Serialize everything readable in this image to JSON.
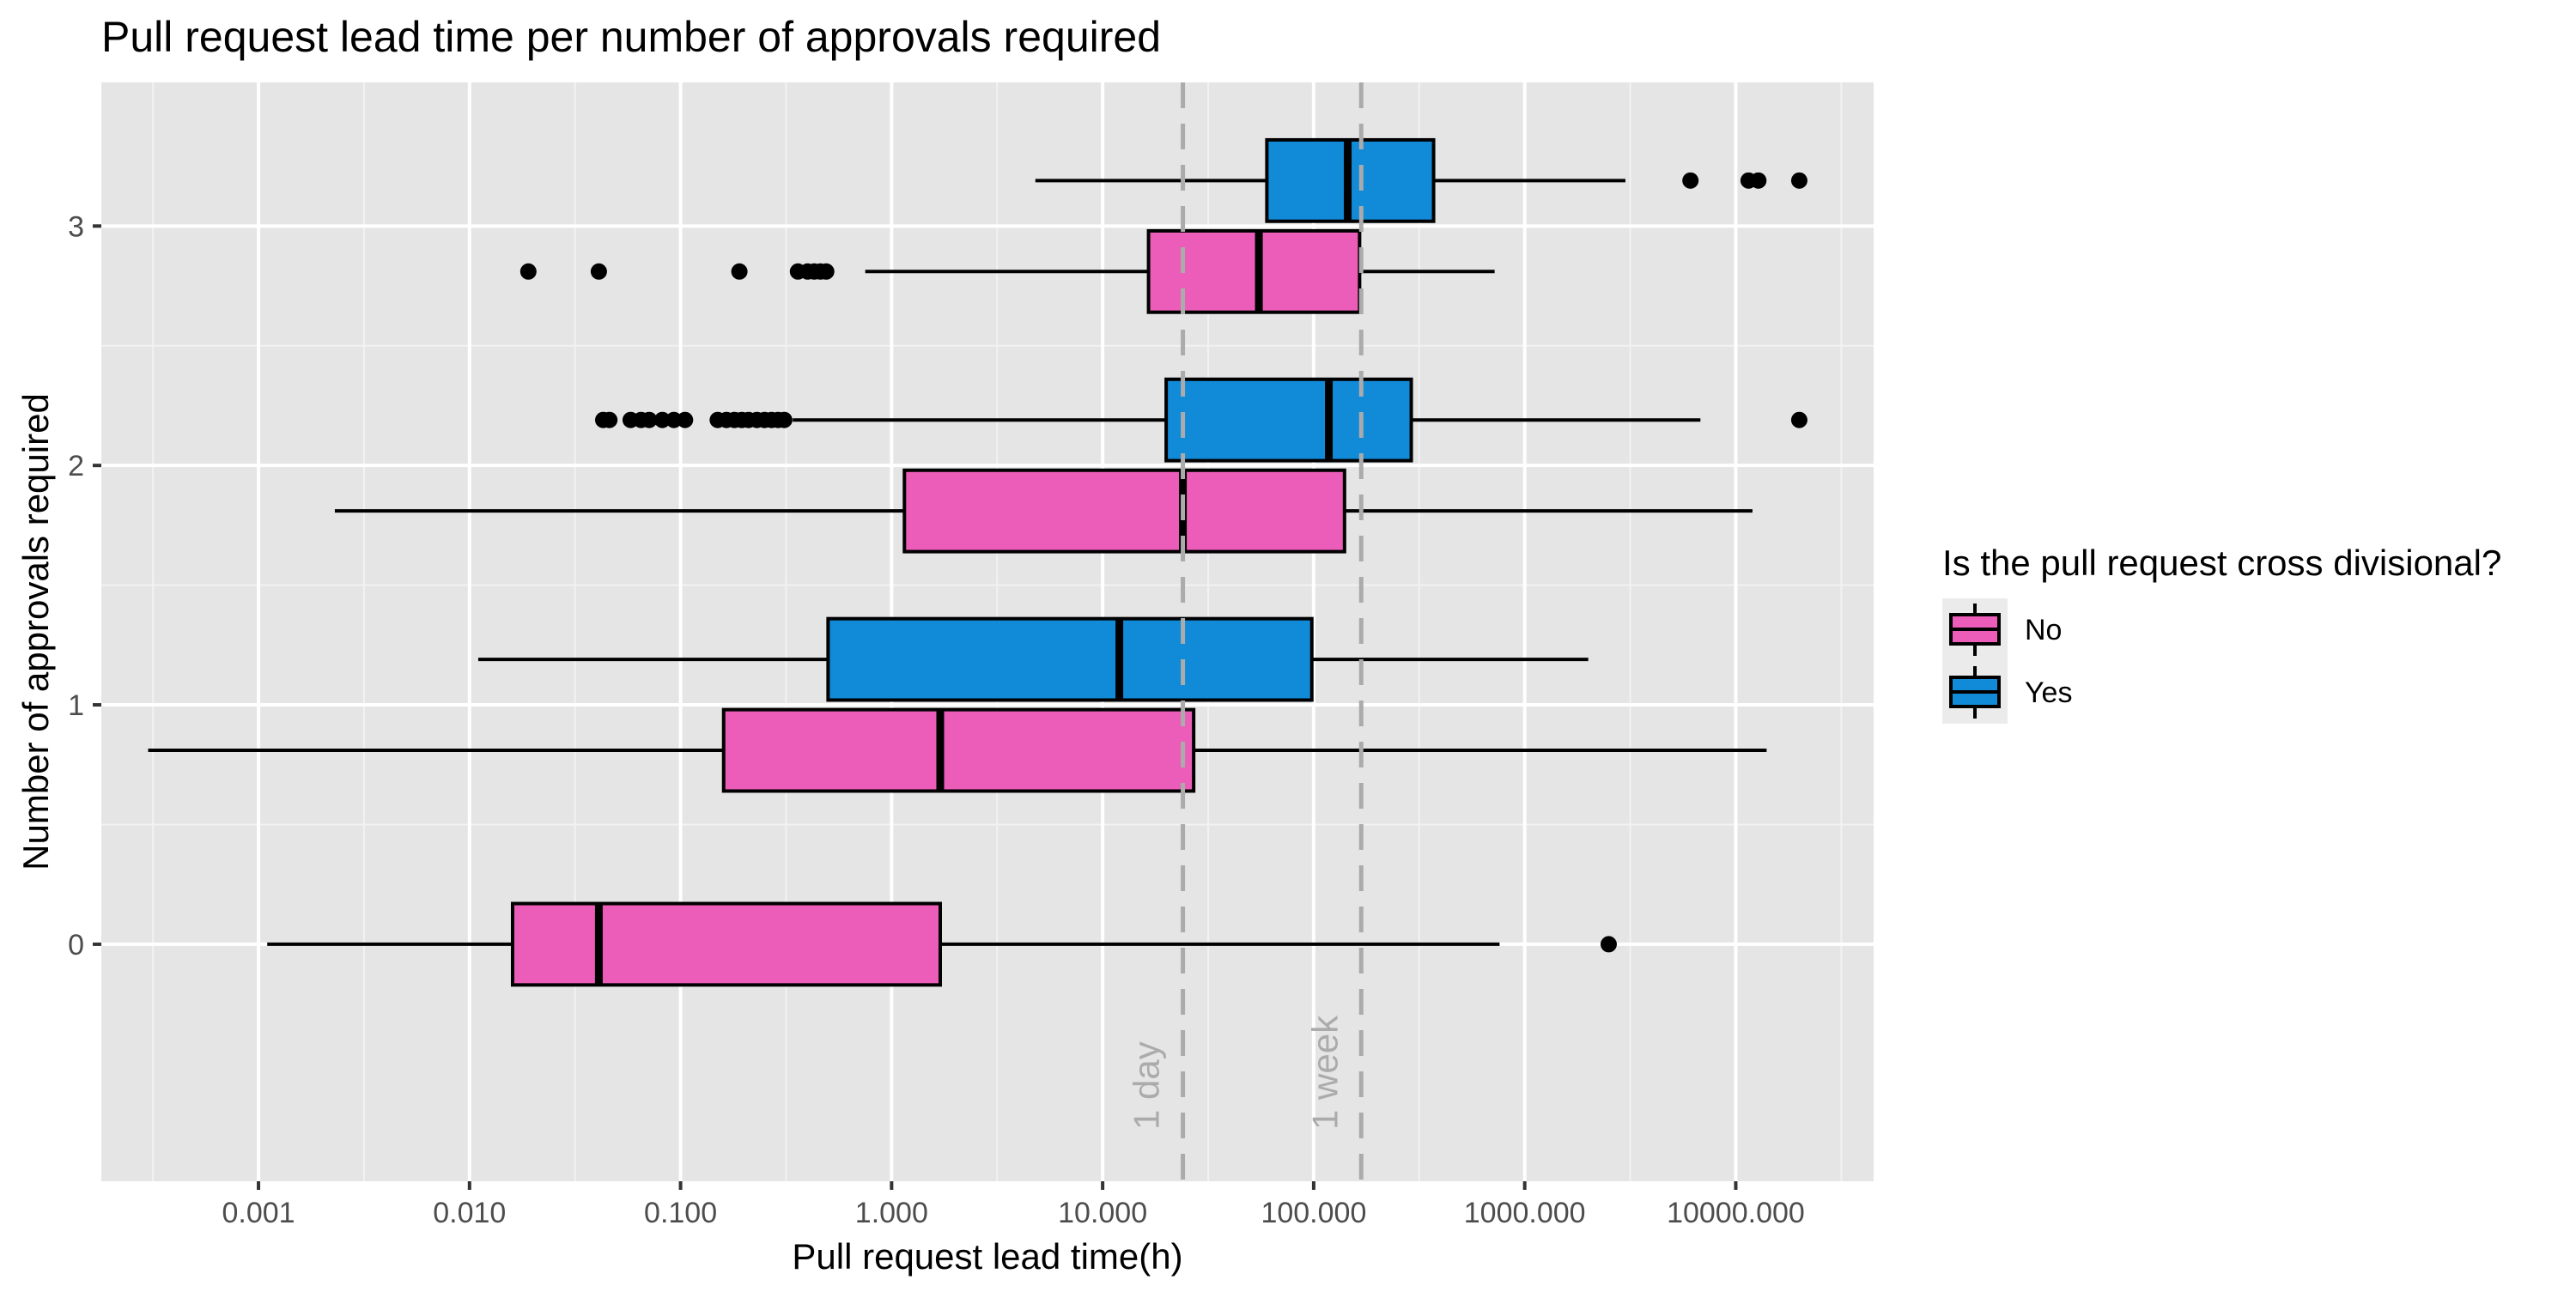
{
  "chart_data": {
    "type": "boxplot",
    "orientation": "horizontal",
    "title": "Pull request lead time per number of approvals required",
    "xlabel": "Pull request lead time(h)",
    "ylabel": "Number of approvals required",
    "x_scale": "log10",
    "xlim": [
      0.00018,
      45000
    ],
    "x_ticks": [
      0.001,
      0.01,
      0.1,
      1,
      10,
      100,
      1000,
      10000
    ],
    "x_tick_labels": [
      "0.001",
      "0.010",
      "0.100",
      "1.000",
      "10.000",
      "100.000",
      "1000.000",
      "10000.000"
    ],
    "ylim": [
      -0.99,
      3.6
    ],
    "y_ticks": [
      0,
      1,
      2,
      3
    ],
    "y_tick_labels": [
      "0",
      "1",
      "2",
      "3"
    ],
    "grid": true,
    "reference_lines": [
      {
        "label": "1 day",
        "x": 24
      },
      {
        "label": "1 week",
        "x": 168
      }
    ],
    "legend": {
      "title": "Is the pull request cross divisional?",
      "position": "right",
      "entries": [
        {
          "label": "No",
          "color": "#EB5DB8"
        },
        {
          "label": "Yes",
          "color": "#118AD8"
        }
      ]
    },
    "series": [
      {
        "name": "No",
        "color": "#EB5DB8",
        "boxes": [
          {
            "y": 0,
            "whisker_low": 0.0011,
            "q1": 0.016,
            "median": 0.041,
            "q3": 1.7,
            "whisker_high": 760,
            "outliers": [
              2500
            ]
          },
          {
            "y": 1,
            "whisker_low": 0.0003,
            "q1": 0.16,
            "median": 1.7,
            "q3": 27,
            "whisker_high": 14000,
            "outliers": []
          },
          {
            "y": 2,
            "whisker_low": 0.0023,
            "q1": 1.15,
            "median": 24,
            "q3": 140,
            "whisker_high": 12000,
            "outliers": []
          },
          {
            "y": 3,
            "whisker_low": 0.75,
            "q1": 16.5,
            "median": 55,
            "q3": 165,
            "whisker_high": 720,
            "outliers": [
              0.019,
              0.041,
              0.19,
              0.36,
              0.4,
              0.43,
              0.46,
              0.49
            ]
          }
        ]
      },
      {
        "name": "Yes",
        "color": "#118AD8",
        "boxes": [
          {
            "y": 1,
            "whisker_low": 0.011,
            "q1": 0.5,
            "median": 12,
            "q3": 98,
            "whisker_high": 2000,
            "outliers": []
          },
          {
            "y": 2,
            "whisker_low": 0.34,
            "q1": 20,
            "median": 118,
            "q3": 290,
            "whisker_high": 6800,
            "outliers": [
              0.043,
              0.046,
              0.058,
              0.065,
              0.071,
              0.082,
              0.093,
              0.105,
              0.15,
              0.165,
              0.18,
              0.195,
              0.21,
              0.23,
              0.25,
              0.27,
              0.29,
              0.31,
              20000
            ]
          },
          {
            "y": 3,
            "whisker_low": 4.8,
            "q1": 60,
            "median": 145,
            "q3": 370,
            "whisker_high": 3000,
            "outliers": [
              6100,
              11500,
              12800,
              20000
            ]
          }
        ]
      }
    ]
  }
}
